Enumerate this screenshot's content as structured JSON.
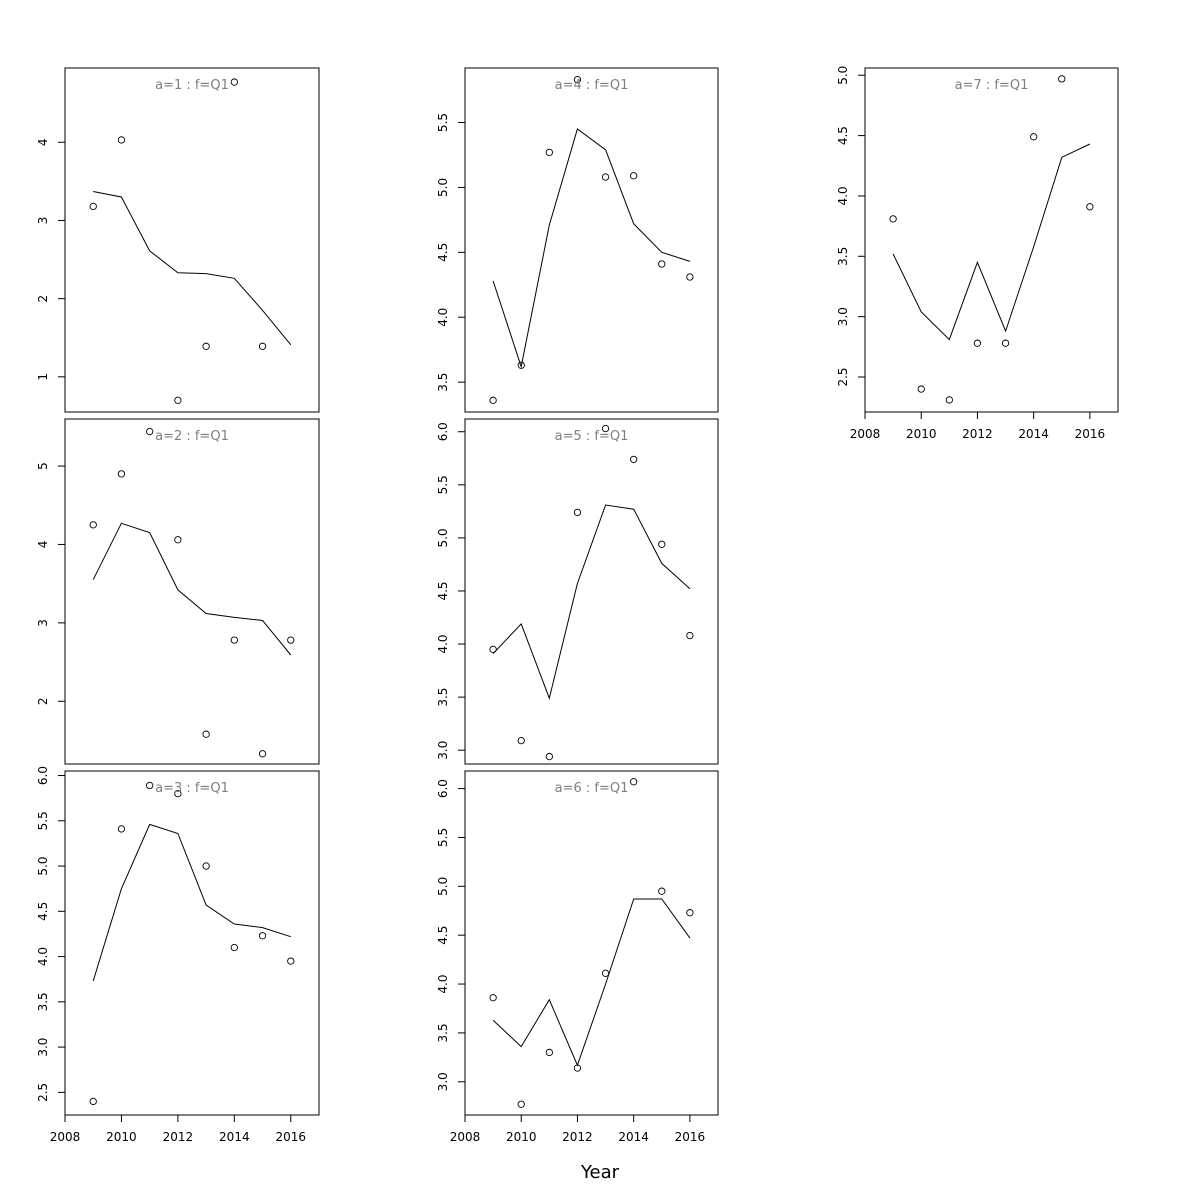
{
  "xlabel": "Year",
  "chart_data": [
    {
      "type": "scatter",
      "title": "a=1 : f=Q1",
      "xlim": [
        2008,
        2017
      ],
      "ylim": [
        0.55,
        4.95
      ],
      "xticks": [],
      "yticks": [
        1,
        2,
        3,
        4
      ],
      "x": [
        2009,
        2010,
        2011,
        2012,
        2013,
        2014,
        2015,
        2016
      ],
      "points": [
        3.18,
        4.03,
        null,
        0.7,
        1.39,
        4.77,
        1.39,
        null
      ],
      "fitted": [
        3.37,
        3.3,
        2.61,
        2.33,
        2.32,
        2.26,
        1.85,
        1.41
      ]
    },
    {
      "type": "scatter",
      "title": "a=2 : f=Q1",
      "xlim": [
        2008,
        2017
      ],
      "ylim": [
        1.2,
        5.6
      ],
      "xticks": [],
      "yticks": [
        2,
        3,
        4,
        5
      ],
      "x": [
        2009,
        2010,
        2011,
        2012,
        2013,
        2014,
        2015,
        2016
      ],
      "points": [
        4.25,
        4.9,
        5.44,
        4.06,
        1.58,
        2.78,
        1.33,
        2.78
      ],
      "fitted": [
        3.55,
        4.27,
        4.15,
        3.42,
        3.12,
        3.07,
        3.03,
        2.59
      ]
    },
    {
      "type": "scatter",
      "title": "a=3 : f=Q1",
      "xlim": [
        2008,
        2017
      ],
      "ylim": [
        2.25,
        6.05
      ],
      "xticks": [
        2008,
        2010,
        2012,
        2014,
        2016
      ],
      "yticks": [
        2.5,
        3.0,
        3.5,
        4.0,
        4.5,
        5.0,
        5.5,
        6.0
      ],
      "x": [
        2009,
        2010,
        2011,
        2012,
        2013,
        2014,
        2015,
        2016
      ],
      "points": [
        2.4,
        5.41,
        5.89,
        5.8,
        5.0,
        4.1,
        4.23,
        3.95
      ],
      "fitted": [
        3.73,
        4.75,
        5.46,
        5.36,
        4.57,
        4.36,
        4.32,
        4.22
      ]
    },
    {
      "type": "scatter",
      "title": "a=4 : f=Q1",
      "xlim": [
        2008,
        2017
      ],
      "ylim": [
        3.27,
        5.92
      ],
      "xticks": [],
      "yticks": [
        3.5,
        4.0,
        4.5,
        5.0,
        5.5
      ],
      "x": [
        2009,
        2010,
        2011,
        2012,
        2013,
        2014,
        2015,
        2016
      ],
      "points": [
        3.36,
        3.63,
        5.27,
        5.83,
        5.08,
        5.09,
        4.41,
        4.31
      ],
      "fitted": [
        4.28,
        3.62,
        4.71,
        5.45,
        5.29,
        4.72,
        4.5,
        4.43
      ]
    },
    {
      "type": "scatter",
      "title": "a=5 : f=Q1",
      "xlim": [
        2008,
        2017
      ],
      "ylim": [
        2.87,
        6.12
      ],
      "xticks": [],
      "yticks": [
        3.0,
        3.5,
        4.0,
        4.5,
        5.0,
        5.5,
        6.0
      ],
      "x": [
        2009,
        2010,
        2011,
        2012,
        2013,
        2014,
        2015,
        2016
      ],
      "points": [
        3.95,
        3.09,
        2.94,
        5.24,
        6.03,
        5.74,
        4.94,
        4.08
      ],
      "fitted": [
        3.91,
        4.19,
        3.49,
        4.57,
        5.31,
        5.27,
        4.76,
        4.52
      ]
    },
    {
      "type": "scatter",
      "title": "a=6 : f=Q1",
      "xlim": [
        2008,
        2017
      ],
      "ylim": [
        2.66,
        6.18
      ],
      "xticks": [
        2008,
        2010,
        2012,
        2014,
        2016
      ],
      "yticks": [
        3.0,
        3.5,
        4.0,
        4.5,
        5.0,
        5.5,
        6.0
      ],
      "x": [
        2009,
        2010,
        2011,
        2012,
        2013,
        2014,
        2015,
        2016
      ],
      "points": [
        3.86,
        2.77,
        3.3,
        3.14,
        4.11,
        6.07,
        4.95,
        4.73
      ],
      "fitted": [
        3.63,
        3.36,
        3.84,
        3.17,
        4.0,
        4.87,
        4.87,
        4.47
      ]
    },
    {
      "type": "scatter",
      "title": "a=7 : f=Q1",
      "xlim": [
        2008,
        2017
      ],
      "ylim": [
        2.21,
        5.06
      ],
      "xticks": [
        2008,
        2010,
        2012,
        2014,
        2016
      ],
      "yticks": [
        2.5,
        3.0,
        3.5,
        4.0,
        4.5,
        5.0
      ],
      "x": [
        2009,
        2010,
        2011,
        2012,
        2013,
        2014,
        2015,
        2016
      ],
      "points": [
        3.81,
        2.4,
        2.31,
        2.78,
        2.78,
        4.49,
        4.97,
        3.91
      ],
      "fitted": [
        3.52,
        3.04,
        2.81,
        3.45,
        2.88,
        3.58,
        4.32,
        4.43
      ]
    }
  ]
}
